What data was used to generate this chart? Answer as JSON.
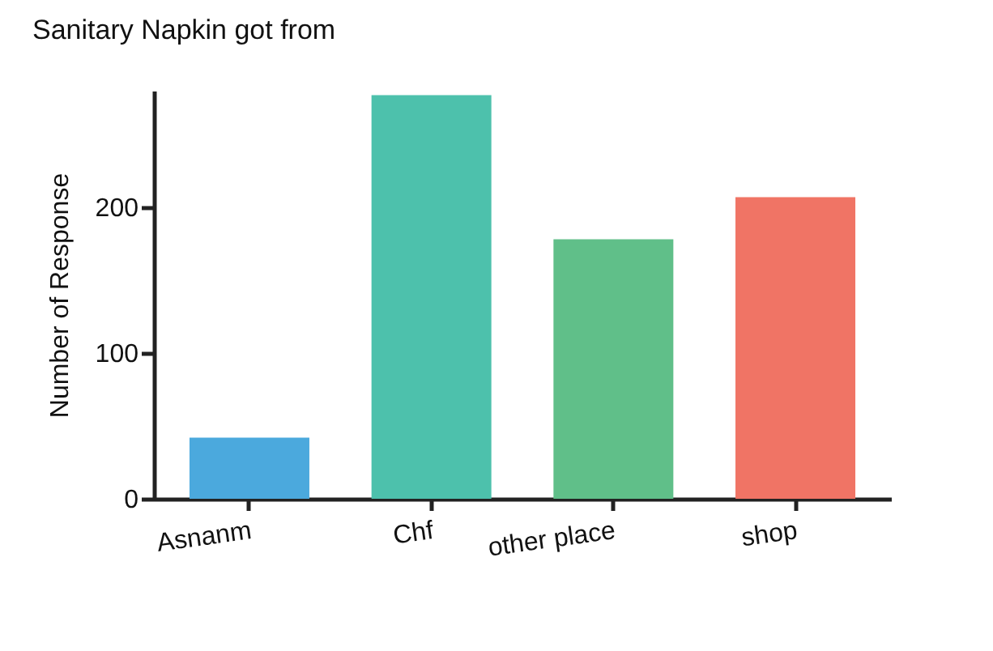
{
  "chart_data": {
    "type": "bar",
    "title": "Sanitary Napkin got from",
    "ylabel": "Number of Response",
    "categories": [
      "Asnanm",
      "Chf",
      "other place",
      "shop"
    ],
    "values": [
      42,
      277,
      178,
      207
    ],
    "colors": [
      "#4ba9dd",
      "#4dc1ac",
      "#60bf89",
      "#f07465"
    ],
    "ylim": [
      0,
      280
    ],
    "yticks": [
      0,
      100,
      200
    ],
    "grid": false,
    "legend": false
  }
}
